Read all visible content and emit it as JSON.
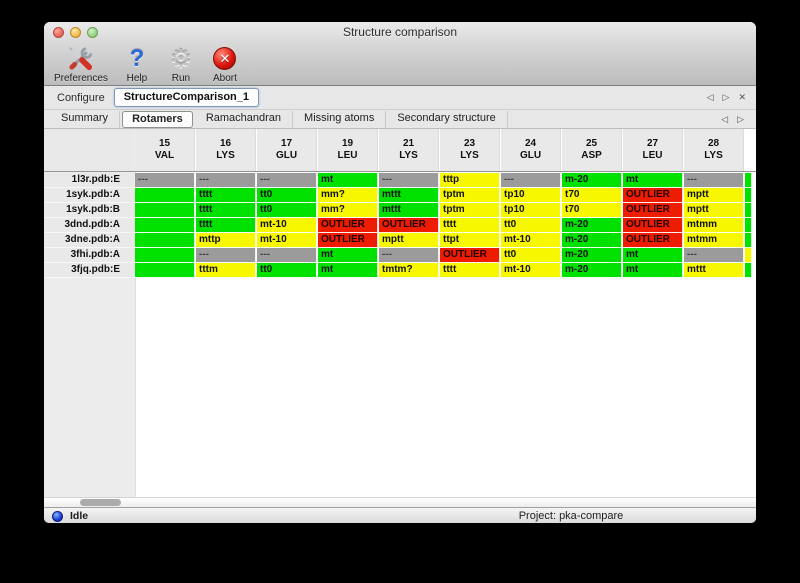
{
  "window": {
    "title": "Structure comparison"
  },
  "toolbar": {
    "items": [
      {
        "label": "Preferences",
        "icon": "preferences-tools-icon"
      },
      {
        "label": "Help",
        "icon": "help-question-icon"
      },
      {
        "label": "Run",
        "icon": "run-gear-icon"
      },
      {
        "label": "Abort",
        "icon": "abort-icon"
      }
    ]
  },
  "configure": {
    "label": "Configure",
    "instance": "StructureComparison_1",
    "nav": {
      "prev": "◁",
      "next": "▷",
      "close": "✕"
    }
  },
  "tabs": {
    "items": [
      "Summary",
      "Rotamers",
      "Ramachandran",
      "Missing atoms",
      "Secondary structure"
    ],
    "selected": "Rotamers",
    "nav": {
      "prev": "◁",
      "next": "▷"
    }
  },
  "legend_colors": {
    "good": "#00e100",
    "warn": "#f7f700",
    "outlier": "#ee1c00",
    "missing": "#9b9b9b"
  },
  "table": {
    "columns": [
      {
        "num": "15",
        "res": "VAL"
      },
      {
        "num": "16",
        "res": "LYS"
      },
      {
        "num": "17",
        "res": "GLU"
      },
      {
        "num": "19",
        "res": "LEU"
      },
      {
        "num": "21",
        "res": "LYS"
      },
      {
        "num": "23",
        "res": "LYS"
      },
      {
        "num": "24",
        "res": "GLU"
      },
      {
        "num": "25",
        "res": "ASP"
      },
      {
        "num": "27",
        "res": "LEU"
      },
      {
        "num": "28",
        "res": "LYS"
      }
    ],
    "rows": [
      {
        "name": "1l3r.pdb:E",
        "cells": [
          [
            "missing",
            "---"
          ],
          [
            "missing",
            "---"
          ],
          [
            "missing",
            "---"
          ],
          [
            "good",
            "mt"
          ],
          [
            "missing",
            "---"
          ],
          [
            "warn",
            "tttp"
          ],
          [
            "missing",
            "---"
          ],
          [
            "good",
            "m-20"
          ],
          [
            "good",
            "mt"
          ],
          [
            "missing",
            "---"
          ]
        ],
        "partial": "good"
      },
      {
        "name": "1syk.pdb:A",
        "cells": [
          [
            "good",
            ""
          ],
          [
            "good",
            "tttt"
          ],
          [
            "good",
            "tt0"
          ],
          [
            "warn",
            "mm?"
          ],
          [
            "good",
            "mttt"
          ],
          [
            "warn",
            "tptm"
          ],
          [
            "warn",
            "tp10"
          ],
          [
            "warn",
            "t70"
          ],
          [
            "outlier",
            "OUTLIER"
          ],
          [
            "warn",
            "mptt"
          ]
        ],
        "partial": "good"
      },
      {
        "name": "1syk.pdb:B",
        "cells": [
          [
            "good",
            ""
          ],
          [
            "good",
            "tttt"
          ],
          [
            "good",
            "tt0"
          ],
          [
            "warn",
            "mm?"
          ],
          [
            "good",
            "mttt"
          ],
          [
            "warn",
            "tptm"
          ],
          [
            "warn",
            "tp10"
          ],
          [
            "warn",
            "t70"
          ],
          [
            "outlier",
            "OUTLIER"
          ],
          [
            "warn",
            "mptt"
          ]
        ],
        "partial": "good"
      },
      {
        "name": "3dnd.pdb:A",
        "cells": [
          [
            "good",
            ""
          ],
          [
            "good",
            "tttt"
          ],
          [
            "warn",
            "mt-10"
          ],
          [
            "outlier",
            "OUTLIER"
          ],
          [
            "outlier",
            "OUTLIER"
          ],
          [
            "warn",
            "tttt"
          ],
          [
            "warn",
            "tt0"
          ],
          [
            "good",
            "m-20"
          ],
          [
            "outlier",
            "OUTLIER"
          ],
          [
            "warn",
            "mtmm"
          ]
        ],
        "partial": "good"
      },
      {
        "name": "3dne.pdb:A",
        "cells": [
          [
            "good",
            ""
          ],
          [
            "warn",
            "mttp"
          ],
          [
            "warn",
            "mt-10"
          ],
          [
            "outlier",
            "OUTLIER"
          ],
          [
            "warn",
            "mptt"
          ],
          [
            "warn",
            "ttpt"
          ],
          [
            "warn",
            "mt-10"
          ],
          [
            "good",
            "m-20"
          ],
          [
            "outlier",
            "OUTLIER"
          ],
          [
            "warn",
            "mtmm"
          ]
        ],
        "partial": "good"
      },
      {
        "name": "3fhi.pdb:A",
        "cells": [
          [
            "good",
            ""
          ],
          [
            "missing",
            "---"
          ],
          [
            "missing",
            "---"
          ],
          [
            "good",
            "mt"
          ],
          [
            "missing",
            "---"
          ],
          [
            "outlier",
            "OUTLIER"
          ],
          [
            "warn",
            "tt0"
          ],
          [
            "good",
            "m-20"
          ],
          [
            "good",
            "mt"
          ],
          [
            "missing",
            "---"
          ]
        ],
        "partial": "warn"
      },
      {
        "name": "3fjq.pdb:E",
        "cells": [
          [
            "good",
            ""
          ],
          [
            "warn",
            "tttm"
          ],
          [
            "good",
            "tt0"
          ],
          [
            "good",
            "mt"
          ],
          [
            "warn",
            "tmtm?"
          ],
          [
            "warn",
            "tttt"
          ],
          [
            "warn",
            "mt-10"
          ],
          [
            "good",
            "m-20"
          ],
          [
            "good",
            "mt"
          ],
          [
            "warn",
            "mttt"
          ]
        ],
        "partial": "good"
      }
    ]
  },
  "statusbar": {
    "status": "Idle",
    "project": "Project: pka-compare"
  }
}
